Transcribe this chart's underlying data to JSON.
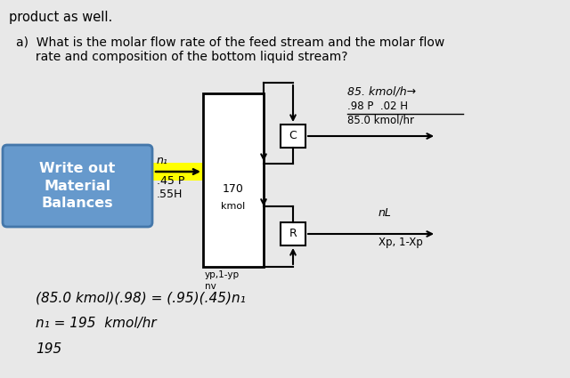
{
  "bg_color": "#e8e8e8",
  "top_text": "product as well.",
  "question_text_line1": "a)  What is the molar flow rate of the feed stream and the molar flow",
  "question_text_line2": "     rate and composition of the bottom liquid stream?",
  "box_label_text": "Write out\nMaterial\nBalances",
  "box_bg": "#6699cc",
  "box_border": "#4477aa",
  "highlight_color": "#ffff00",
  "feed_label1": "n₁",
  "feed_label2": ".45 P",
  "feed_label3": ".55H",
  "top_flow": "85. kmol/h",
  "top_comp1": ".98 P  .02 H",
  "top_comp2": "85.0 kmol/hr",
  "column_label": "170\nkmol",
  "condenser_label": "C",
  "reboiler_label": "R",
  "bottom_label1": "nL",
  "bottom_label2": "Xp, 1-Xp",
  "vapor_label1": "yp,1-yp",
  "vapor_label2": "nv",
  "eq_line1": "(85.0 kmol)(.98) = (.95)(.45)n₁",
  "eq_line2": "n₁ = 195  kmol/hr",
  "eq_line3": "195"
}
